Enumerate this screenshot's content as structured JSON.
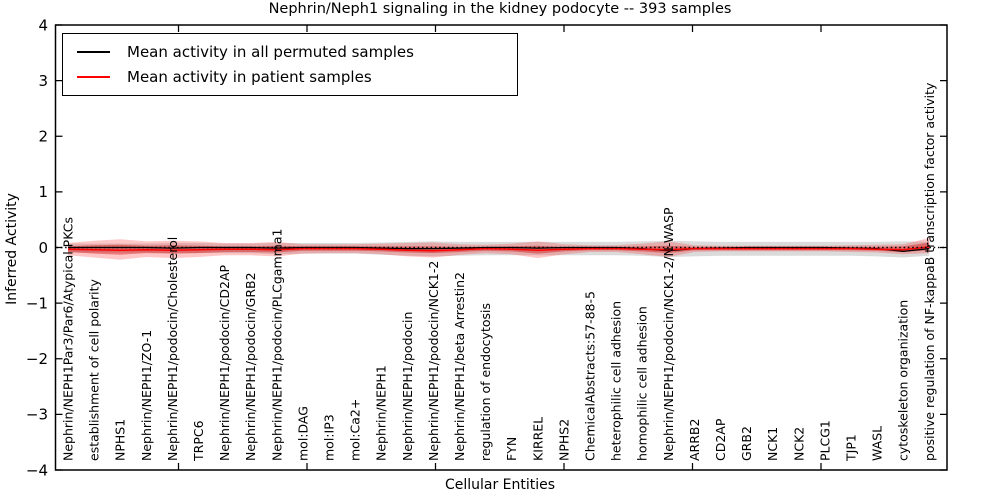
{
  "title": "Nephrin/Neph1 signaling in the kidney podocyte -- 393 samples",
  "legend": {
    "items": [
      {
        "label": "Mean activity in all permuted samples",
        "color": "#000000"
      },
      {
        "label": "Mean activity in patient samples",
        "color": "#ff0000"
      }
    ]
  },
  "chart_data": {
    "type": "line",
    "title": "Nephrin/Neph1 signaling in the kidney podocyte -- 393 samples",
    "xlabel": "Cellular Entities",
    "ylabel": "Inferred Activity",
    "ylim": [
      -4,
      4
    ],
    "yticks": [
      -4,
      -3,
      -2,
      -1,
      0,
      1,
      2,
      3,
      4
    ],
    "grid": false,
    "legend_position": "upper left",
    "zero_line": true,
    "categories": [
      "Nephrin/NEPH1Par3/Par6/Atypical PKCs",
      "establishment of cell polarity",
      "NPHS1",
      "Nephrin/NEPH1/ZO-1",
      "Nephrin/NEPH1/podocin/Cholesterol",
      "TRPC6",
      "Nephrin/NEPH1/podocin/CD2AP",
      "Nephrin/NEPH1/podocin/GRB2",
      "Nephrin/NEPH1/podocin/PLCgamma1",
      "mol:DAG",
      "mol:IP3",
      "mol:Ca2+",
      "Nephrin/NEPH1",
      "Nephrin/NEPH1/podocin",
      "Nephrin/NEPH1/podocin/NCK1-2",
      "Nephrin/NEPH1/beta Arrestin2",
      "regulation of endocytosis",
      "FYN",
      "KIRREL",
      "NPHS2",
      "ChemicalAbstracts:57-88-5",
      "heterophilic cell adhesion",
      "homophilic cell adhesion",
      "Nephrin/NEPH1/podocin/NCK1-2/N-WASP",
      "ARRB2",
      "CD2AP",
      "GRB2",
      "NCK1",
      "NCK2",
      "PLCG1",
      "TJP1",
      "WASL",
      "cytoskeleton organization",
      "positive regulation of NF-kappaB transcription factor activity"
    ],
    "series": [
      {
        "name": "Mean activity in all permuted samples",
        "color": "#000000",
        "values": [
          0,
          0,
          0,
          0,
          -0.01,
          0,
          0,
          0,
          -0.01,
          0,
          0,
          0,
          -0.01,
          -0.02,
          -0.02,
          -0.01,
          0,
          0,
          -0.01,
          0,
          0,
          0,
          -0.02,
          -0.06,
          -0.02,
          -0.01,
          0,
          0,
          0,
          0,
          -0.01,
          -0.02,
          -0.07,
          -0.02
        ]
      },
      {
        "name": "Mean activity in patient samples",
        "color": "#ff0000",
        "values": [
          -0.03,
          -0.04,
          -0.05,
          -0.04,
          -0.05,
          -0.04,
          -0.03,
          -0.03,
          -0.04,
          -0.02,
          -0.02,
          -0.02,
          -0.03,
          -0.05,
          -0.06,
          -0.04,
          -0.02,
          -0.03,
          -0.05,
          -0.03,
          -0.02,
          -0.02,
          -0.03,
          -0.04,
          -0.02,
          -0.02,
          -0.02,
          -0.02,
          -0.02,
          -0.02,
          -0.02,
          -0.03,
          -0.04,
          0.01
        ]
      }
    ],
    "bands": [
      {
        "name": "permuted-samples-std-band",
        "color": "#888888",
        "opacity": 0.3,
        "upper": [
          0.07,
          0.07,
          0.07,
          0.07,
          0.08,
          0.08,
          0.07,
          0.07,
          0.08,
          0.08,
          0.08,
          0.08,
          0.09,
          0.1,
          0.11,
          0.1,
          0.1,
          0.1,
          0.1,
          0.1,
          0.1,
          0.1,
          0.11,
          0.12,
          0.11,
          0.1,
          0.1,
          0.1,
          0.1,
          0.1,
          0.1,
          0.1,
          0.11,
          0.1
        ],
        "lower": [
          -0.09,
          -0.09,
          -0.09,
          -0.09,
          -0.1,
          -0.1,
          -0.1,
          -0.1,
          -0.12,
          -0.11,
          -0.11,
          -0.11,
          -0.13,
          -0.15,
          -0.16,
          -0.15,
          -0.14,
          -0.14,
          -0.14,
          -0.14,
          -0.14,
          -0.14,
          -0.15,
          -0.17,
          -0.16,
          -0.15,
          -0.15,
          -0.15,
          -0.15,
          -0.15,
          -0.15,
          -0.16,
          -0.18,
          -0.15
        ]
      },
      {
        "name": "patient-samples-std-band-outer",
        "color": "#ff0000",
        "opacity": 0.22,
        "upper": [
          0.08,
          0.12,
          0.15,
          0.11,
          0.12,
          0.11,
          0.08,
          0.08,
          0.1,
          0.06,
          0.06,
          0.06,
          0.07,
          0.08,
          0.09,
          0.06,
          0.05,
          0.07,
          0.11,
          0.06,
          0.04,
          0.04,
          0.07,
          0.11,
          0.04,
          0.03,
          0.03,
          0.03,
          0.03,
          0.03,
          0.04,
          0.05,
          0.06,
          0.17
        ],
        "lower": [
          -0.14,
          -0.18,
          -0.22,
          -0.17,
          -0.19,
          -0.17,
          -0.14,
          -0.14,
          -0.16,
          -0.11,
          -0.1,
          -0.1,
          -0.12,
          -0.16,
          -0.18,
          -0.13,
          -0.1,
          -0.12,
          -0.19,
          -0.12,
          -0.08,
          -0.08,
          -0.12,
          -0.17,
          -0.08,
          -0.07,
          -0.07,
          -0.07,
          -0.07,
          -0.07,
          -0.08,
          -0.09,
          -0.12,
          -0.1
        ]
      },
      {
        "name": "patient-samples-std-band-inner",
        "color": "#cc0000",
        "opacity": 0.38,
        "upper": [
          0.02,
          0.04,
          0.05,
          0.03,
          0.04,
          0.03,
          0.02,
          0.02,
          0.03,
          0.02,
          0.02,
          0.02,
          0.02,
          0.02,
          0.02,
          0.01,
          0.01,
          0.02,
          0.03,
          0.01,
          0.01,
          0.01,
          0.02,
          0.03,
          0.01,
          0.01,
          0.01,
          0.01,
          0.01,
          0.01,
          0.01,
          0.01,
          0.02,
          0.09
        ],
        "lower": [
          -0.08,
          -0.11,
          -0.13,
          -0.1,
          -0.11,
          -0.1,
          -0.08,
          -0.08,
          -0.09,
          -0.06,
          -0.06,
          -0.06,
          -0.07,
          -0.09,
          -0.1,
          -0.08,
          -0.06,
          -0.07,
          -0.11,
          -0.07,
          -0.05,
          -0.05,
          -0.07,
          -0.1,
          -0.05,
          -0.05,
          -0.05,
          -0.05,
          -0.05,
          -0.05,
          -0.05,
          -0.06,
          -0.08,
          -0.05
        ]
      }
    ]
  }
}
